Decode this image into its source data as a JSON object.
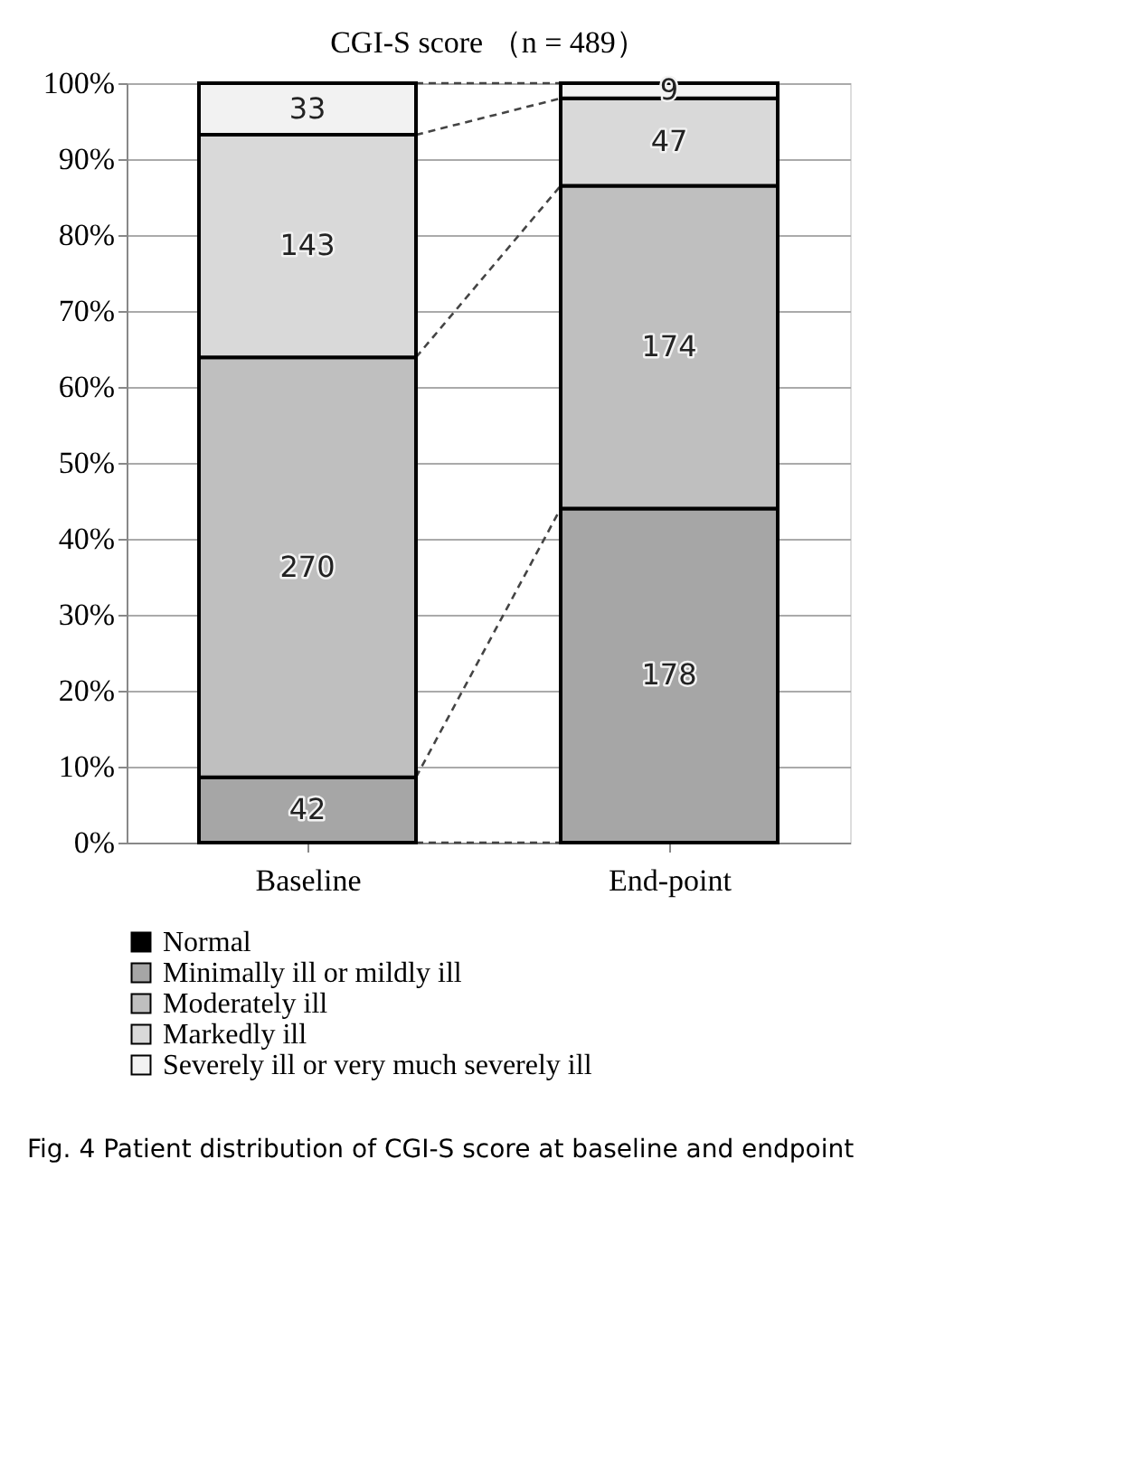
{
  "chart_data": {
    "type": "bar",
    "title": "CGI-S score （n = 489）",
    "stacked": true,
    "categories": [
      "Baseline",
      "End-point"
    ],
    "series": [
      {
        "name": "Normal",
        "color": "#000000",
        "values": [
          0,
          null
        ]
      },
      {
        "name": "Minimally ill or mildly ill",
        "color": "#a6a6a6",
        "values": [
          8.6,
          44.0
        ]
      },
      {
        "name": "Moderately ill",
        "color": "#bfbfbf",
        "values": [
          55.3,
          42.5
        ]
      },
      {
        "name": "Markedly ill",
        "color": "#d9d9d9",
        "values": [
          29.3,
          11.5
        ]
      },
      {
        "name": "Severely ill or very much severely ill",
        "color": "#f2f2f2",
        "values": [
          6.8,
          2.0
        ]
      }
    ],
    "ylim": [
      0,
      100
    ],
    "yticks": [
      {
        "value": 0,
        "label": "0%"
      },
      {
        "value": 10,
        "label": "10%"
      },
      {
        "value": 20,
        "label": "20%"
      },
      {
        "value": 30,
        "label": "30%"
      },
      {
        "value": 40,
        "label": "40%"
      },
      {
        "value": 50,
        "label": "50%"
      },
      {
        "value": 60,
        "label": "60%"
      },
      {
        "value": 70,
        "label": "70%"
      },
      {
        "value": 80,
        "label": "80%"
      },
      {
        "value": 90,
        "label": "90%"
      },
      {
        "value": 100,
        "label": "100%"
      }
    ],
    "grid": "y",
    "legend": "bottom",
    "annotations": [
      "42",
      "270",
      "143",
      "33",
      "178",
      "174",
      "47",
      "9",
      "Fig. 4 Patient distribution of CGI-S score at baseline and endpoint"
    ]
  }
}
